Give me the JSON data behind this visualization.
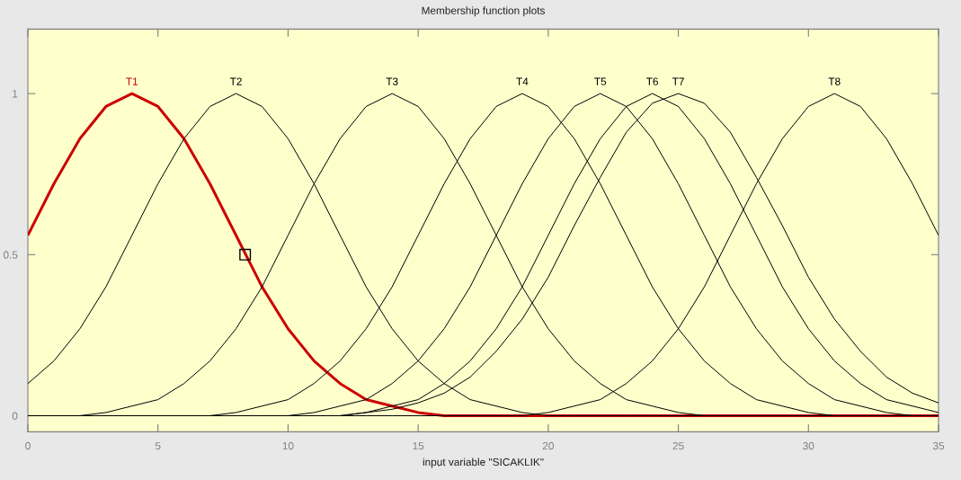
{
  "chart_data": {
    "type": "line",
    "title": "Membership function plots",
    "xlabel": "input variable \"SICAKLIK\"",
    "x": [
      0,
      1,
      2,
      3,
      4,
      5,
      6,
      7,
      8,
      9,
      10,
      11,
      12,
      13,
      14,
      15,
      16,
      17,
      18,
      19,
      20,
      21,
      22,
      23,
      24,
      25,
      26,
      27,
      28,
      29,
      30,
      31,
      32,
      33,
      34,
      35
    ],
    "xlim": [
      0,
      35
    ],
    "xticks": [
      0,
      5,
      10,
      15,
      20,
      25,
      30,
      35
    ],
    "ylim": [
      -0.05,
      1.2
    ],
    "yticks": [
      0,
      0.5,
      1
    ],
    "marker": "none",
    "line_style": "solid",
    "series": [
      {
        "name": "T1",
        "color": "#cc0000",
        "values": [
          0.56,
          0.72,
          0.86,
          0.96,
          1,
          0.96,
          0.86,
          0.72,
          0.56,
          0.4,
          0.27,
          0.17,
          0.1,
          0.05,
          0.03,
          0.01,
          0,
          0,
          0,
          0,
          0,
          0,
          0,
          0,
          0,
          0,
          0,
          0,
          0,
          0,
          0,
          0,
          0,
          0,
          0,
          0
        ]
      },
      {
        "name": "T2",
        "color": "#000000",
        "values": [
          0.1,
          0.17,
          0.27,
          0.4,
          0.56,
          0.72,
          0.86,
          0.96,
          1,
          0.96,
          0.86,
          0.72,
          0.56,
          0.4,
          0.27,
          0.17,
          0.1,
          0.05,
          0.03,
          0.01,
          0,
          0,
          0,
          0,
          0,
          0,
          0,
          0,
          0,
          0,
          0,
          0,
          0,
          0,
          0,
          0
        ]
      },
      {
        "name": "T3",
        "color": "#000000",
        "values": [
          0,
          0,
          0,
          0.01,
          0.03,
          0.05,
          0.1,
          0.17,
          0.27,
          0.4,
          0.56,
          0.72,
          0.86,
          0.96,
          1,
          0.96,
          0.86,
          0.72,
          0.56,
          0.4,
          0.27,
          0.17,
          0.1,
          0.05,
          0.03,
          0.01,
          0,
          0,
          0,
          0,
          0,
          0,
          0,
          0,
          0,
          0
        ]
      },
      {
        "name": "T4",
        "color": "#000000",
        "values": [
          0,
          0,
          0,
          0,
          0,
          0,
          0,
          0,
          0.01,
          0.03,
          0.05,
          0.1,
          0.17,
          0.27,
          0.4,
          0.56,
          0.72,
          0.86,
          0.96,
          1,
          0.96,
          0.86,
          0.72,
          0.56,
          0.4,
          0.27,
          0.17,
          0.1,
          0.05,
          0.03,
          0.01,
          0,
          0,
          0,
          0,
          0
        ]
      },
      {
        "name": "T5",
        "color": "#000000",
        "values": [
          0,
          0,
          0,
          0,
          0,
          0,
          0,
          0,
          0,
          0,
          0,
          0.01,
          0.03,
          0.05,
          0.1,
          0.17,
          0.27,
          0.4,
          0.56,
          0.72,
          0.86,
          0.96,
          1,
          0.96,
          0.86,
          0.72,
          0.56,
          0.4,
          0.27,
          0.17,
          0.1,
          0.05,
          0.03,
          0.01,
          0,
          0
        ]
      },
      {
        "name": "T6",
        "color": "#000000",
        "values": [
          0,
          0,
          0,
          0,
          0,
          0,
          0,
          0,
          0,
          0,
          0,
          0,
          0,
          0.01,
          0.03,
          0.05,
          0.1,
          0.17,
          0.27,
          0.4,
          0.56,
          0.72,
          0.86,
          0.96,
          1,
          0.96,
          0.86,
          0.72,
          0.56,
          0.4,
          0.27,
          0.17,
          0.1,
          0.05,
          0.03,
          0.01
        ]
      },
      {
        "name": "T7",
        "color": "#000000",
        "values": [
          0,
          0,
          0,
          0,
          0,
          0,
          0,
          0,
          0,
          0,
          0,
          0,
          0,
          0.01,
          0.02,
          0.04,
          0.07,
          0.12,
          0.2,
          0.3,
          0.43,
          0.59,
          0.74,
          0.88,
          0.97,
          1,
          0.97,
          0.88,
          0.74,
          0.59,
          0.43,
          0.3,
          0.2,
          0.12,
          0.07,
          0.04
        ]
      },
      {
        "name": "T8",
        "color": "#000000",
        "values": [
          0,
          0,
          0,
          0,
          0,
          0,
          0,
          0,
          0,
          0,
          0,
          0,
          0,
          0,
          0,
          0,
          0,
          0,
          0,
          0,
          0.01,
          0.03,
          0.05,
          0.1,
          0.17,
          0.27,
          0.4,
          0.56,
          0.72,
          0.86,
          0.96,
          1,
          0.96,
          0.86,
          0.72,
          0.56
        ]
      },
      {
        "type": "scatter",
        "marker": "square",
        "color": "#000000",
        "x": [
          8.35
        ],
        "values": [
          0.5
        ]
      }
    ]
  }
}
